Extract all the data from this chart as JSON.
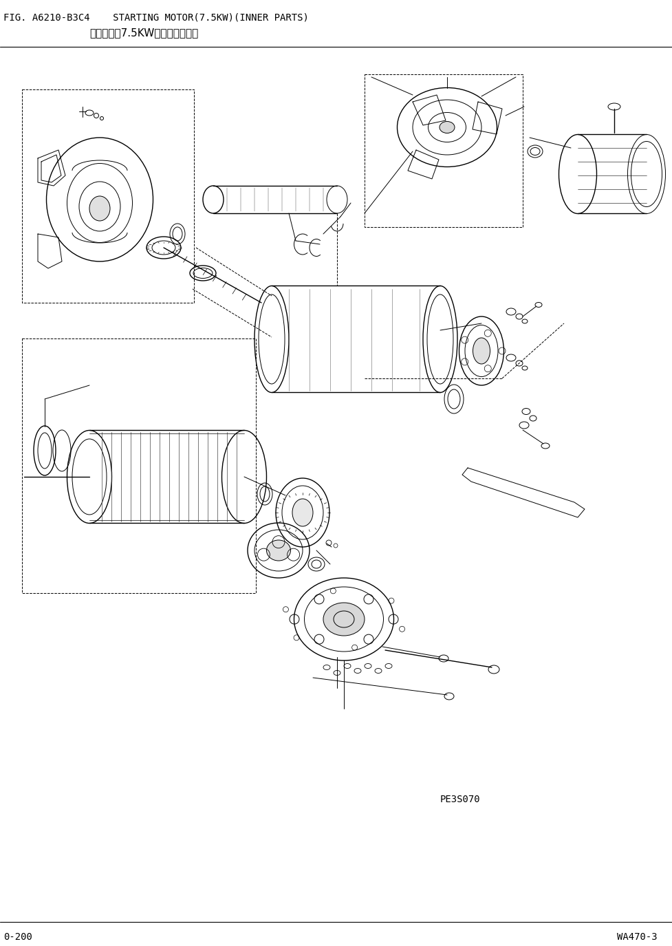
{
  "title_line1": "FIG. A6210-B3C4    STARTING MOTOR(7.5KW)(INNER PARTS)",
  "title_line2": "              起动马达（7.5KW）（内部零件）",
  "bottom_left": "0-200",
  "bottom_right": "WA470-3",
  "bottom_center": "PE3S070",
  "bg_color": "#ffffff",
  "line_color": "#000000",
  "title_fontsize": 10,
  "footer_fontsize": 10,
  "fig_width": 9.77,
  "fig_height": 13.75,
  "dpi": 100
}
